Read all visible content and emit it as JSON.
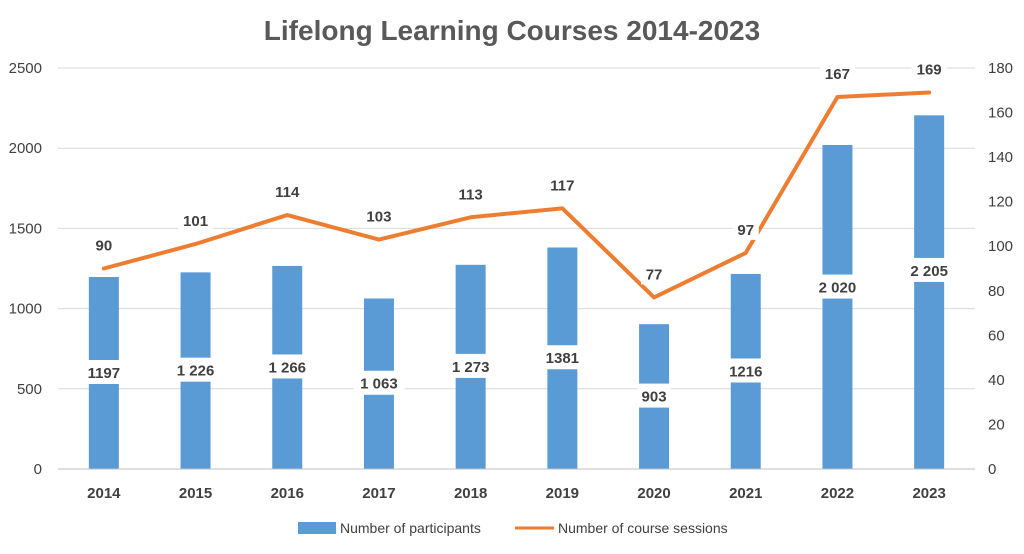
{
  "chart_data": {
    "type": "bar",
    "title": "Lifelong Learning Courses 2014-2023",
    "categories": [
      "2014",
      "2015",
      "2016",
      "2017",
      "2018",
      "2019",
      "2020",
      "2021",
      "2022",
      "2023"
    ],
    "series": [
      {
        "name": "Number of participants",
        "chart_type": "bar",
        "axis": "left",
        "color": "#5b9bd5",
        "values": [
          1197,
          1226,
          1266,
          1063,
          1273,
          1381,
          903,
          1216,
          2020,
          2205
        ],
        "labels": [
          "1197",
          "1 226",
          "1 266",
          "1 063",
          "1 273",
          "1381",
          "903",
          "1216",
          "2 020",
          "2 205"
        ]
      },
      {
        "name": "Number of course sessions",
        "chart_type": "line",
        "axis": "right",
        "color": "#ed7d31",
        "values": [
          90,
          101,
          114,
          103,
          113,
          117,
          77,
          97,
          167,
          169
        ],
        "labels": [
          "90",
          "101",
          "114",
          "103",
          "113",
          "117",
          "77",
          "97",
          "167",
          "169"
        ]
      }
    ],
    "y_left": {
      "min": 0,
      "max": 2500,
      "ticks": [
        "0",
        "500",
        "1000",
        "1500",
        "2000",
        "2500"
      ]
    },
    "y_right": {
      "min": 0,
      "max": 180,
      "ticks": [
        "0",
        "20",
        "40",
        "60",
        "80",
        "100",
        "120",
        "140",
        "160",
        "180"
      ]
    },
    "grid": true,
    "legend_position": "bottom"
  }
}
